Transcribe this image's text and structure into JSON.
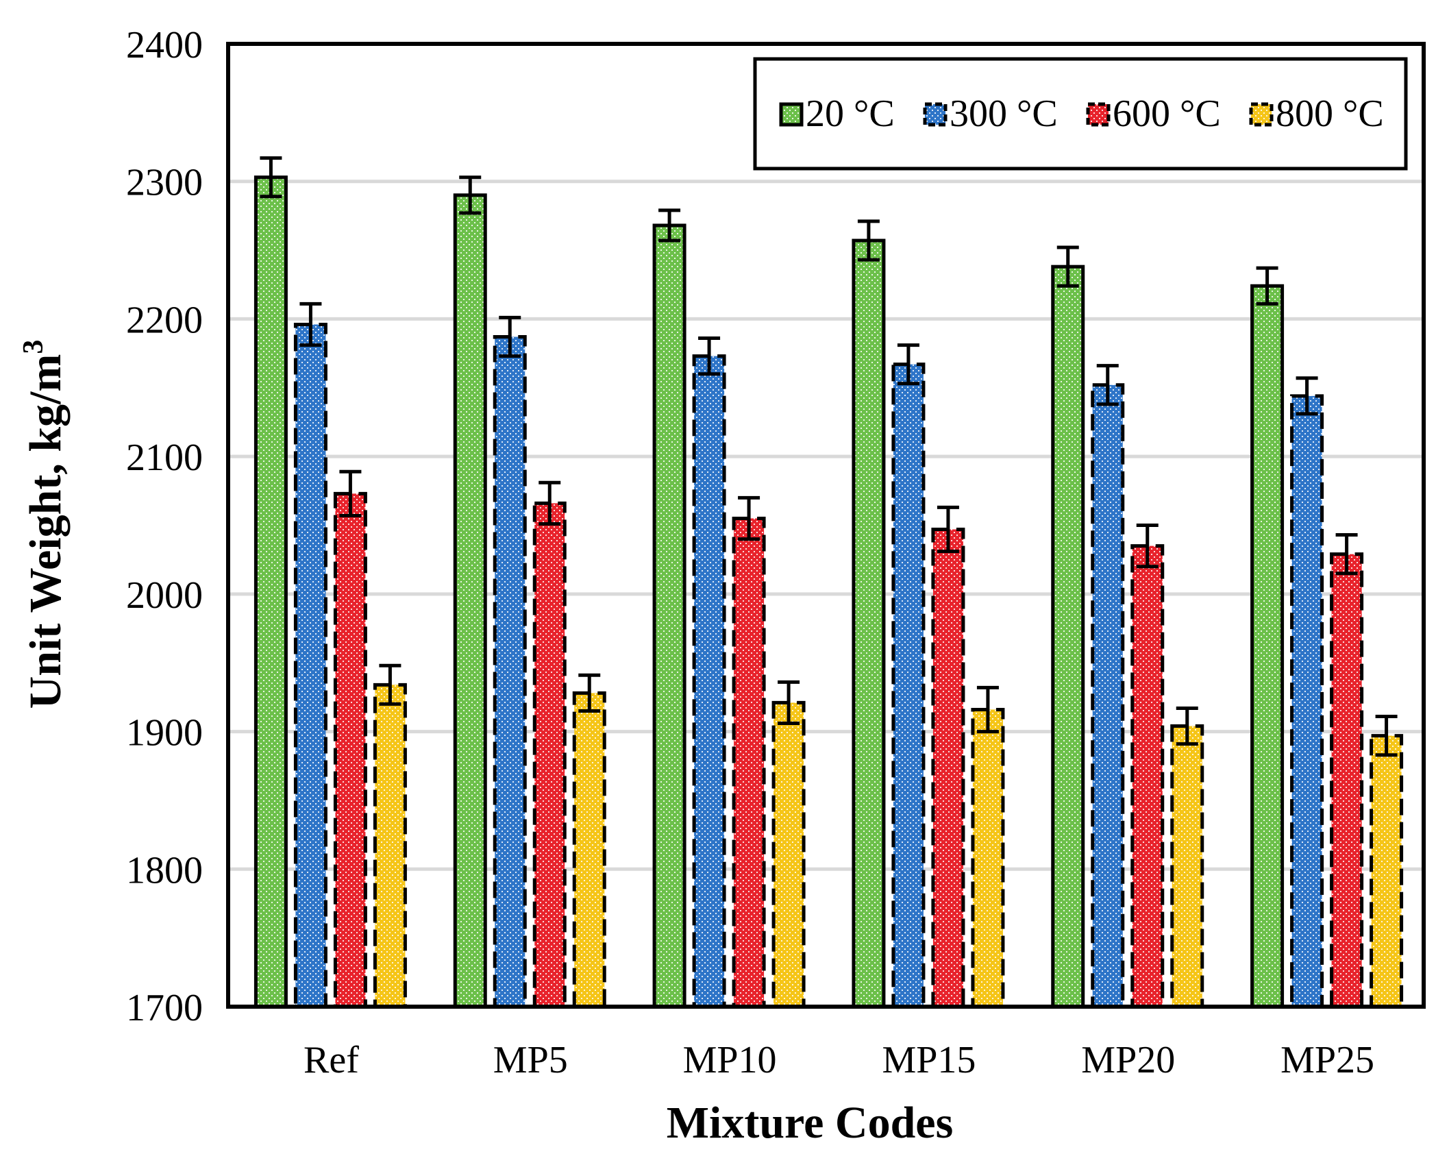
{
  "chart_data": {
    "type": "bar",
    "title": "",
    "xlabel": "Mixture Codes",
    "ylabel": "Unit Weight, kg/m",
    "ylabel_superscript": "3",
    "ylim": [
      1700,
      2400
    ],
    "yticks": [
      "1700",
      "1800",
      "1900",
      "2000",
      "2100",
      "2200",
      "2300",
      "2400"
    ],
    "grid": true,
    "legend_position": "top-right",
    "categories": [
      "Ref",
      "MP5",
      "MP10",
      "MP15",
      "MP20",
      "MP25"
    ],
    "series": [
      {
        "name": "20 °C",
        "color": "#6cc04a",
        "values": [
          2303,
          2290,
          2268,
          2257,
          2238,
          2224
        ],
        "errors": [
          14,
          13,
          11,
          14,
          14,
          13
        ]
      },
      {
        "name": "300 °C",
        "color": "#2e75c8",
        "values": [
          2196,
          2187,
          2173,
          2167,
          2152,
          2144
        ],
        "errors": [
          15,
          14,
          13,
          14,
          14,
          13
        ]
      },
      {
        "name": "600 °C",
        "color": "#e8232c",
        "values": [
          2073,
          2066,
          2055,
          2047,
          2035,
          2029
        ],
        "errors": [
          16,
          15,
          15,
          16,
          15,
          14
        ]
      },
      {
        "name": "800 °C",
        "color": "#f5c518",
        "values": [
          1934,
          1928,
          1921,
          1916,
          1904,
          1897
        ],
        "errors": [
          14,
          13,
          15,
          16,
          13,
          14
        ]
      }
    ]
  }
}
